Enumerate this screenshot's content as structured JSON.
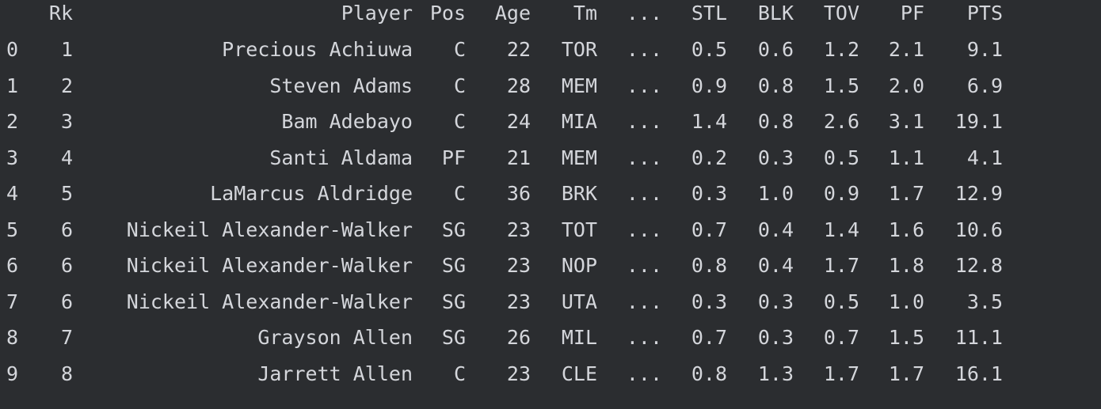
{
  "table": {
    "columns": {
      "rk": "Rk",
      "player": "Player",
      "pos": "Pos",
      "age": "Age",
      "tm": "Tm",
      "ellipsis": "...",
      "stl": "STL",
      "blk": "BLK",
      "tov": "TOV",
      "pf": "PF",
      "pts": "PTS"
    },
    "rows": [
      {
        "idx": "0",
        "rk": "1",
        "player": "Precious Achiuwa",
        "pos": "C",
        "age": "22",
        "tm": "TOR",
        "ellipsis": "...",
        "stl": "0.5",
        "blk": "0.6",
        "tov": "1.2",
        "pf": "2.1",
        "pts": "9.1"
      },
      {
        "idx": "1",
        "rk": "2",
        "player": "Steven Adams",
        "pos": "C",
        "age": "28",
        "tm": "MEM",
        "ellipsis": "...",
        "stl": "0.9",
        "blk": "0.8",
        "tov": "1.5",
        "pf": "2.0",
        "pts": "6.9"
      },
      {
        "idx": "2",
        "rk": "3",
        "player": "Bam Adebayo",
        "pos": "C",
        "age": "24",
        "tm": "MIA",
        "ellipsis": "...",
        "stl": "1.4",
        "blk": "0.8",
        "tov": "2.6",
        "pf": "3.1",
        "pts": "19.1"
      },
      {
        "idx": "3",
        "rk": "4",
        "player": "Santi Aldama",
        "pos": "PF",
        "age": "21",
        "tm": "MEM",
        "ellipsis": "...",
        "stl": "0.2",
        "blk": "0.3",
        "tov": "0.5",
        "pf": "1.1",
        "pts": "4.1"
      },
      {
        "idx": "4",
        "rk": "5",
        "player": "LaMarcus Aldridge",
        "pos": "C",
        "age": "36",
        "tm": "BRK",
        "ellipsis": "...",
        "stl": "0.3",
        "blk": "1.0",
        "tov": "0.9",
        "pf": "1.7",
        "pts": "12.9"
      },
      {
        "idx": "5",
        "rk": "6",
        "player": "Nickeil Alexander-Walker",
        "pos": "SG",
        "age": "23",
        "tm": "TOT",
        "ellipsis": "...",
        "stl": "0.7",
        "blk": "0.4",
        "tov": "1.4",
        "pf": "1.6",
        "pts": "10.6"
      },
      {
        "idx": "6",
        "rk": "6",
        "player": "Nickeil Alexander-Walker",
        "pos": "SG",
        "age": "23",
        "tm": "NOP",
        "ellipsis": "...",
        "stl": "0.8",
        "blk": "0.4",
        "tov": "1.7",
        "pf": "1.8",
        "pts": "12.8"
      },
      {
        "idx": "7",
        "rk": "6",
        "player": "Nickeil Alexander-Walker",
        "pos": "SG",
        "age": "23",
        "tm": "UTA",
        "ellipsis": "...",
        "stl": "0.3",
        "blk": "0.3",
        "tov": "0.5",
        "pf": "1.0",
        "pts": "3.5"
      },
      {
        "idx": "8",
        "rk": "7",
        "player": "Grayson Allen",
        "pos": "SG",
        "age": "26",
        "tm": "MIL",
        "ellipsis": "...",
        "stl": "0.7",
        "blk": "0.3",
        "tov": "0.7",
        "pf": "1.5",
        "pts": "11.1"
      },
      {
        "idx": "9",
        "rk": "8",
        "player": "Jarrett Allen",
        "pos": "C",
        "age": "23",
        "tm": "CLE",
        "ellipsis": "...",
        "stl": "0.8",
        "blk": "1.3",
        "tov": "1.7",
        "pf": "1.7",
        "pts": "16.1"
      }
    ]
  },
  "colors": {
    "background": "#2b2d30",
    "text": "#d4d6db"
  }
}
